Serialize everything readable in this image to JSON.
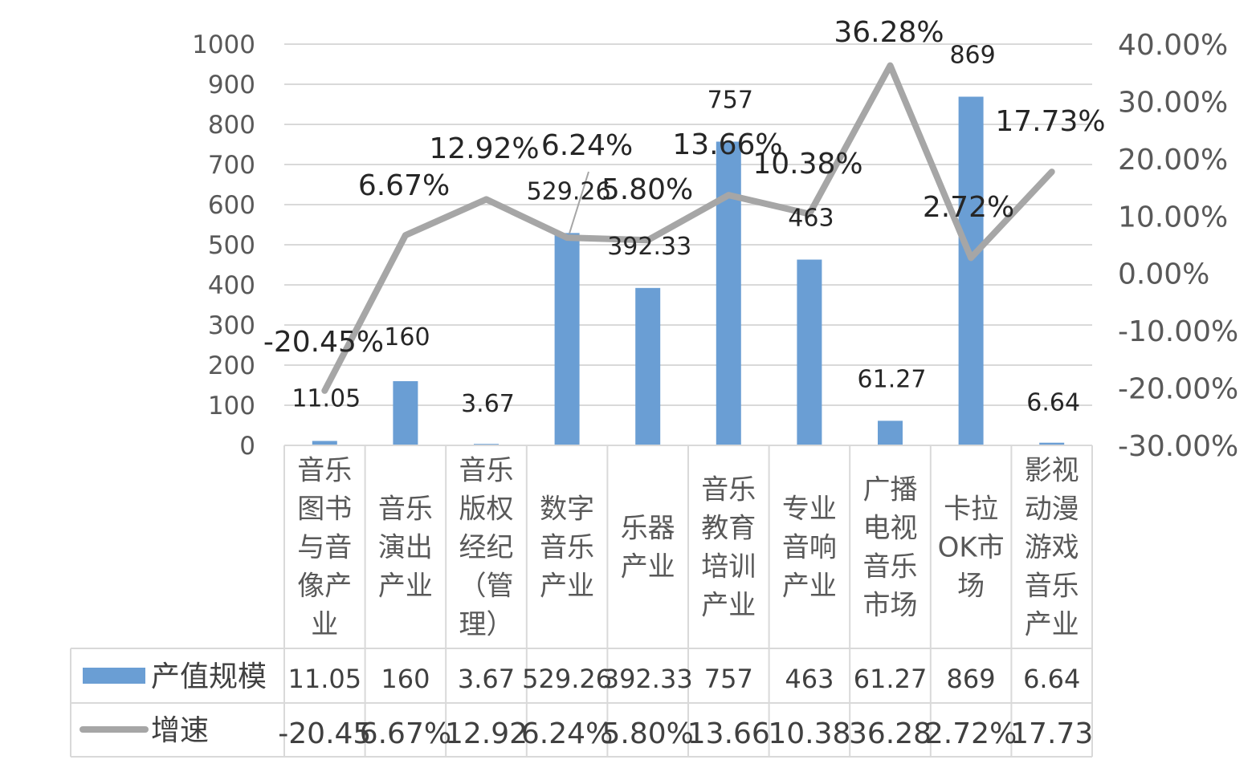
{
  "chart_data": {
    "type": "bar",
    "categories": [
      "音乐图书与音像产业",
      "音乐演出产业",
      "音乐版权经纪（管理）",
      "数字音乐产业",
      "乐器产业",
      "音乐教育培训产业",
      "专业音响产业",
      "广播电视音乐市场",
      "卡拉OK市场",
      "影视动漫游戏音乐产业"
    ],
    "category_lines": [
      [
        "音乐",
        "图书",
        "与音",
        "像产",
        "业"
      ],
      [
        "音乐",
        "演出",
        "产业"
      ],
      [
        "音乐",
        "版权",
        "经纪",
        "（管",
        "理）"
      ],
      [
        "数字",
        "音乐",
        "产业"
      ],
      [
        "乐器",
        "产业"
      ],
      [
        "音乐",
        "教育",
        "培训",
        "产业"
      ],
      [
        "专业",
        "音响",
        "产业"
      ],
      [
        "广播",
        "电视",
        "音乐",
        "市场"
      ],
      [
        "卡拉",
        "OK市",
        "场"
      ],
      [
        "影视",
        "动漫",
        "游戏",
        "音乐",
        "产业"
      ]
    ],
    "series": [
      {
        "name": "产值规模",
        "kind": "bar",
        "axis": "left",
        "color": "#6a9ed4",
        "values": [
          11.05,
          160,
          3.67,
          529.26,
          392.33,
          757,
          463,
          61.27,
          869,
          6.64
        ],
        "labels": [
          "11.05",
          "160",
          "3.67",
          "529.26",
          "392.33",
          "757",
          "463",
          "61.27",
          "869",
          "6.64"
        ],
        "table_labels": [
          "11.05",
          "160",
          "3.67",
          "529.26",
          "392.33",
          "757",
          "463",
          "61.27",
          "869",
          "6.64"
        ]
      },
      {
        "name": "增速",
        "kind": "line",
        "axis": "right",
        "color": "#a6a6a6",
        "values": [
          -20.45,
          6.67,
          12.92,
          6.24,
          5.8,
          13.66,
          10.38,
          36.28,
          2.72,
          17.73
        ],
        "labels": [
          "-20.45%",
          "6.67%",
          "12.92%",
          "6.24%",
          "5.80%",
          "13.66%",
          "10.38%",
          "36.28%",
          "2.72%",
          "17.73%"
        ],
        "table_labels": [
          "-20.45",
          "6.67%",
          "12.92",
          "6.24%",
          "5.80%",
          "13.66",
          "10.38",
          "36.28",
          "2.72%",
          "17.73"
        ]
      }
    ],
    "y_left": {
      "lim": [
        0,
        1000
      ],
      "ticks": [
        0,
        100,
        200,
        300,
        400,
        500,
        600,
        700,
        800,
        900,
        1000
      ],
      "tick_labels": [
        "0",
        "100",
        "200",
        "300",
        "400",
        "500",
        "600",
        "700",
        "800",
        "900",
        "1000"
      ]
    },
    "y_right": {
      "lim": [
        -30,
        40
      ],
      "ticks": [
        -30,
        -20,
        -10,
        0,
        10,
        20,
        30,
        40
      ],
      "tick_labels": [
        "-30.00%",
        "-20.00%",
        "-10.00%",
        "0.00%",
        "10.00%",
        "20.00%",
        "30.00%",
        "40.00%"
      ]
    },
    "grid": true,
    "legend": "data-table"
  }
}
